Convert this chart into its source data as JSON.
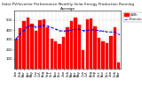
{
  "title": "Solar PV/Inverter Performance Monthly Solar Energy Production Running Average",
  "bar_color": "#FF0000",
  "avg_color": "#0000EE",
  "background_color": "#FFFFFF",
  "grid_color": "#AAAAAA",
  "months": [
    "Jan",
    "Feb",
    "Mar",
    "Apr",
    "May",
    "Jun",
    "Jul",
    "Aug",
    "Sep",
    "Oct",
    "Nov",
    "Dec",
    "Jan",
    "Feb",
    "Mar",
    "Apr",
    "May",
    "Jun",
    "Jul",
    "Aug",
    "Sep",
    "Oct",
    "Nov",
    "Dec",
    "Jan",
    "Feb",
    "Mar"
  ],
  "values": [
    310,
    420,
    490,
    530,
    460,
    390,
    500,
    510,
    430,
    305,
    285,
    255,
    325,
    425,
    495,
    525,
    455,
    195,
    505,
    515,
    435,
    315,
    285,
    265,
    335,
    425,
    65
  ],
  "running_avg": [
    310,
    360,
    400,
    440,
    445,
    430,
    440,
    450,
    440,
    425,
    408,
    393,
    388,
    392,
    398,
    407,
    407,
    393,
    397,
    402,
    400,
    394,
    387,
    381,
    378,
    379,
    355
  ],
  "ylim": [
    0,
    600
  ],
  "yticks": [
    100,
    200,
    300,
    400,
    500
  ],
  "title_fontsize": 3.0,
  "tick_fontsize": 2.8,
  "legend_fontsize": 2.8,
  "legend_label_kwh": "kWh",
  "legend_label_avg": "Running Average"
}
